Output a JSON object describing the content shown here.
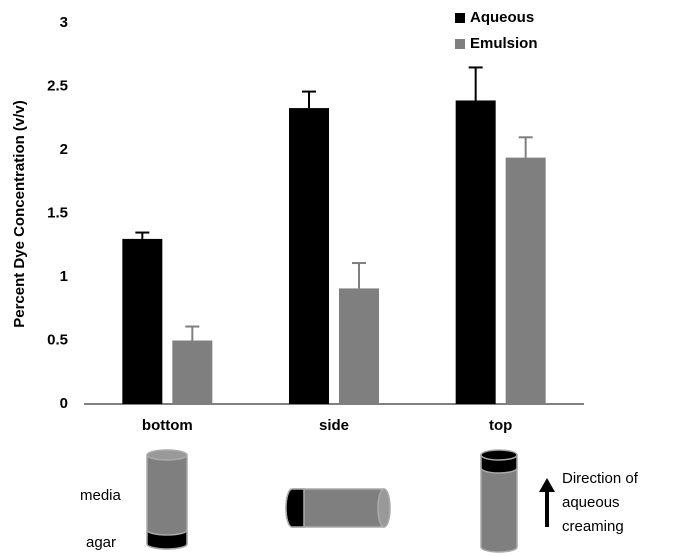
{
  "chart_data": {
    "type": "bar",
    "y_label": "Percent Dye Concentration (v/v)",
    "categories": [
      "bottom",
      "side",
      "top"
    ],
    "series": [
      {
        "name": "Aqueous",
        "color": "#000000",
        "values": [
          1.3,
          2.33,
          2.39
        ],
        "errors": [
          0.05,
          0.13,
          0.26
        ]
      },
      {
        "name": "Emulsion",
        "color": "#7f7f7f",
        "values": [
          0.5,
          0.91,
          1.94
        ],
        "errors": [
          0.11,
          0.2,
          0.16
        ]
      }
    ],
    "ylim": [
      0,
      3
    ],
    "yticks": [
      0,
      0.5,
      1,
      1.5,
      2,
      2.5,
      3
    ],
    "grid": false,
    "legend": "top-right"
  },
  "annotations": {
    "media": "media",
    "agar": "agar",
    "direction": [
      "Direction of",
      "aqueous",
      "creaming"
    ]
  }
}
